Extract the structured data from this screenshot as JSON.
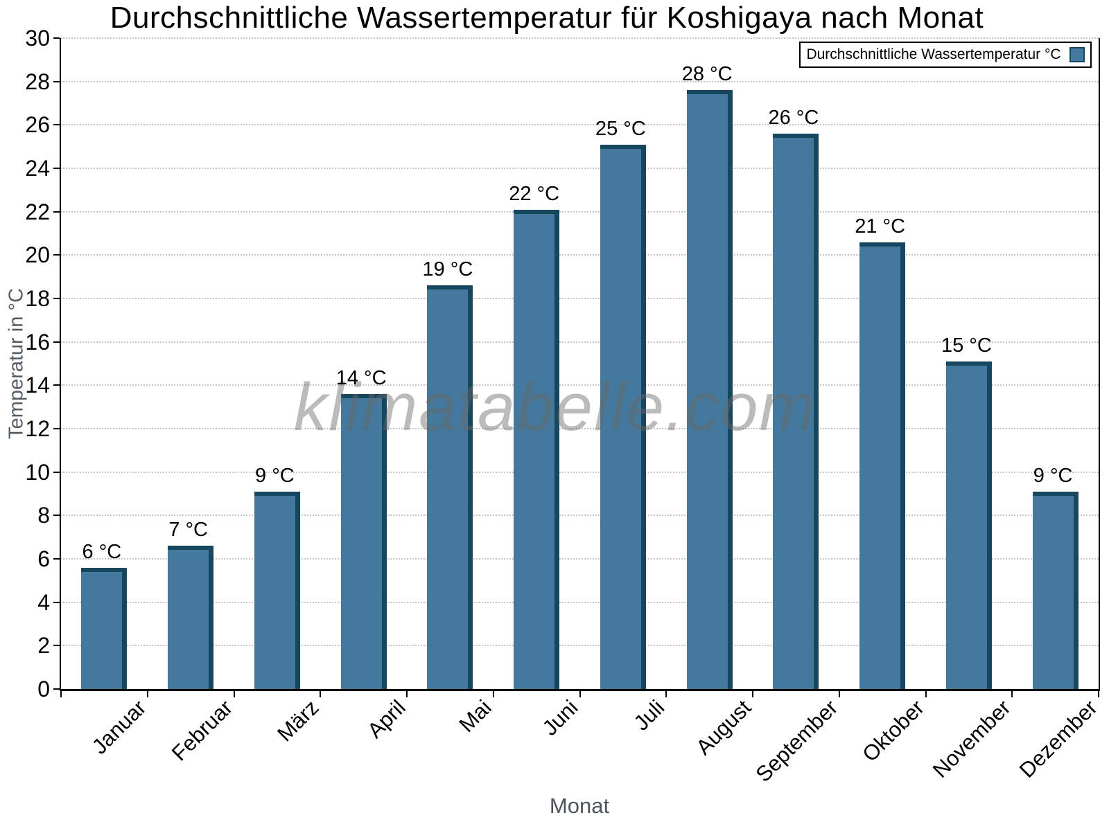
{
  "chart_data": {
    "type": "bar",
    "title": "Durchschnittliche Wassertemperatur für Koshigaya nach Monat",
    "xlabel": "Monat",
    "ylabel": "Temperatur in °C",
    "categories": [
      "Januar",
      "Februar",
      "März",
      "April",
      "Mai",
      "Juni",
      "Juli",
      "August",
      "September",
      "Oktober",
      "November",
      "Dezember"
    ],
    "values": [
      6,
      7,
      9,
      14,
      19,
      22,
      25,
      28,
      26,
      21,
      15,
      9
    ],
    "bar_labels": [
      "6 °C",
      "7 °C",
      "9 °C",
      "14 °C",
      "19 °C",
      "22 °C",
      "25 °C",
      "28 °C",
      "26 °C",
      "21 °C",
      "15 °C",
      "9 °C"
    ],
    "plotted_values_estimated": [
      5.6,
      6.6,
      9.1,
      13.6,
      18.6,
      22.1,
      25.1,
      27.6,
      25.6,
      20.6,
      15.1,
      9.1
    ],
    "ylim": [
      0,
      30
    ],
    "ytick_step": 2,
    "ytick_labels": [
      "0",
      "2",
      "4",
      "6",
      "8",
      "10",
      "12",
      "14",
      "16",
      "18",
      "20",
      "22",
      "24",
      "26",
      "28",
      "30"
    ],
    "grid": "horizontal-dotted",
    "legend": {
      "position": "top-right",
      "label": "Durchschnittliche Wassertemperatur °C"
    },
    "watermark": "klimatabelle.com",
    "colors": {
      "bar_face": "#44789c",
      "bar_edge": "#17465f",
      "grid": "#c3c3c3",
      "axis": "#000000",
      "axis_title_gray": "#525c66",
      "watermark_gray": "rgba(105,105,105,0.45)",
      "background": "#ffffff"
    }
  }
}
